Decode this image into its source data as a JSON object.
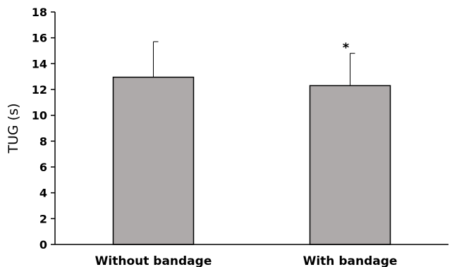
{
  "chart_data": {
    "type": "bar",
    "categories": [
      "Without bandage",
      "With bandage"
    ],
    "values": [
      12.95,
      12.3
    ],
    "error_bars": [
      2.75,
      2.5
    ],
    "significance": [
      "",
      "*"
    ],
    "ylabel": "TUG (s)",
    "xlabel": "",
    "ylim": [
      0,
      18
    ],
    "yticks": [
      0,
      2,
      4,
      6,
      8,
      10,
      12,
      14,
      16,
      18
    ],
    "grid": false,
    "bar_color": "#aeaaaa",
    "bar_edge_color": "#000000"
  }
}
